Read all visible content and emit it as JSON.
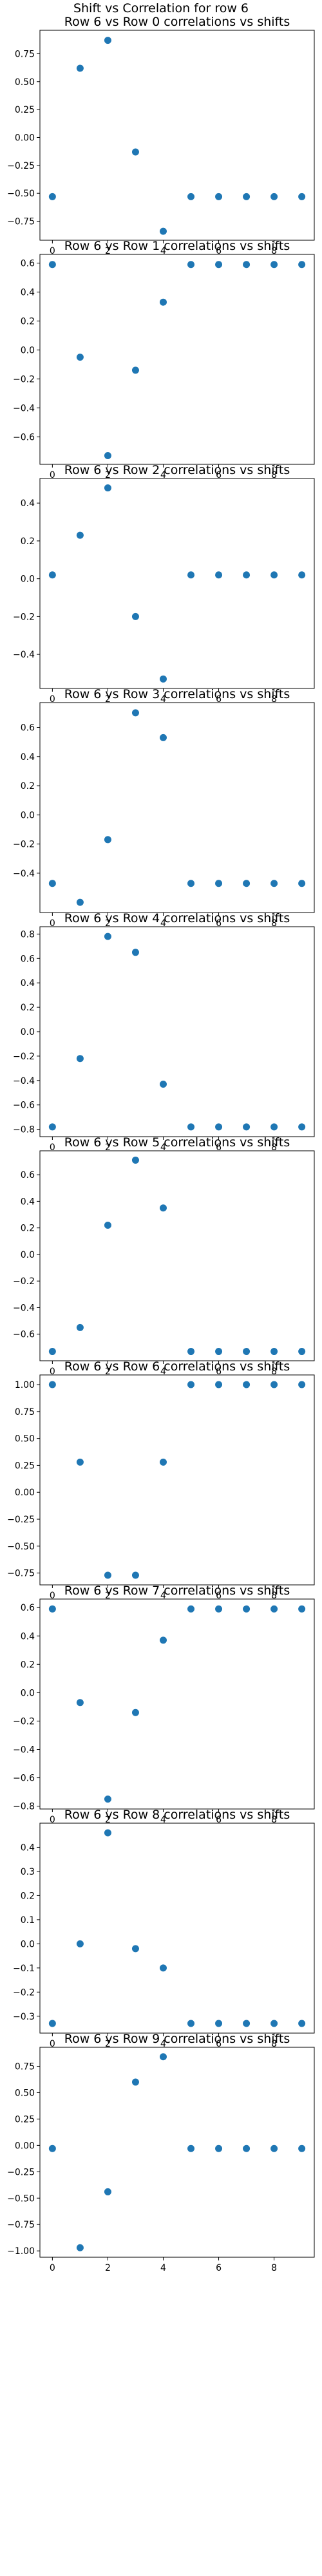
{
  "suptitle": "Shift vs Correlation for row 6",
  "colors": {
    "marker": "#1f77b4",
    "axis": "#000000"
  },
  "chart_data": [
    {
      "type": "scatter",
      "title": "Row 6 vs Row 0 correlations vs shifts",
      "x": [
        0,
        1,
        2,
        3,
        4,
        5,
        6,
        7,
        8,
        9
      ],
      "y": [
        -0.53,
        0.62,
        0.87,
        -0.13,
        -0.84,
        -0.53,
        -0.53,
        -0.53,
        -0.53,
        -0.53
      ],
      "xlim": [
        -0.45,
        9.45
      ],
      "ylim": [
        -0.92,
        0.96
      ],
      "xticks": [
        0,
        2,
        4,
        6,
        8
      ],
      "yticks": [
        -0.75,
        -0.5,
        -0.25,
        0.0,
        0.25,
        0.5,
        0.75
      ],
      "ytick_labels": [
        "−0.75",
        "−0.50",
        "−0.25",
        "0.00",
        "0.25",
        "0.50",
        "0.75"
      ]
    },
    {
      "type": "scatter",
      "title": "Row 6 vs Row 1 correlations vs shifts",
      "x": [
        0,
        1,
        2,
        3,
        4,
        5,
        6,
        7,
        8,
        9
      ],
      "y": [
        0.59,
        -0.05,
        -0.73,
        -0.14,
        0.33,
        0.59,
        0.59,
        0.59,
        0.59,
        0.59
      ],
      "xlim": [
        -0.45,
        9.45
      ],
      "ylim": [
        -0.79,
        0.66
      ],
      "xticks": [
        0,
        2,
        4,
        6,
        8
      ],
      "yticks": [
        -0.6,
        -0.4,
        -0.2,
        0.0,
        0.2,
        0.4,
        0.6
      ],
      "ytick_labels": [
        "−0.6",
        "−0.4",
        "−0.2",
        "0.0",
        "0.2",
        "0.4",
        "0.6"
      ]
    },
    {
      "type": "scatter",
      "title": "Row 6 vs Row 2 correlations vs shifts",
      "x": [
        0,
        1,
        2,
        3,
        4,
        5,
        6,
        7,
        8,
        9
      ],
      "y": [
        0.02,
        0.23,
        0.48,
        -0.2,
        -0.53,
        0.02,
        0.02,
        0.02,
        0.02,
        0.02
      ],
      "xlim": [
        -0.45,
        9.45
      ],
      "ylim": [
        -0.58,
        0.53
      ],
      "xticks": [
        0,
        2,
        4,
        6,
        8
      ],
      "yticks": [
        -0.4,
        -0.2,
        0.0,
        0.2,
        0.4
      ],
      "ytick_labels": [
        "−0.4",
        "−0.2",
        "0.0",
        "0.2",
        "0.4"
      ]
    },
    {
      "type": "scatter",
      "title": "Row 6 vs Row 3 correlations vs shifts",
      "x": [
        0,
        1,
        2,
        3,
        4,
        5,
        6,
        7,
        8,
        9
      ],
      "y": [
        -0.47,
        -0.6,
        -0.17,
        0.7,
        0.53,
        -0.47,
        -0.47,
        -0.47,
        -0.47,
        -0.47
      ],
      "xlim": [
        -0.45,
        9.45
      ],
      "ylim": [
        -0.67,
        0.77
      ],
      "xticks": [
        0,
        2,
        4,
        6,
        8
      ],
      "yticks": [
        -0.4,
        -0.2,
        0.0,
        0.2,
        0.4,
        0.6
      ],
      "ytick_labels": [
        "−0.4",
        "−0.2",
        "0.0",
        "0.2",
        "0.4",
        "0.6"
      ]
    },
    {
      "type": "scatter",
      "title": "Row 6 vs Row 4 correlations vs shifts",
      "x": [
        0,
        1,
        2,
        3,
        4,
        5,
        6,
        7,
        8,
        9
      ],
      "y": [
        -0.78,
        -0.22,
        0.78,
        0.65,
        -0.43,
        -0.78,
        -0.78,
        -0.78,
        -0.78,
        -0.78
      ],
      "xlim": [
        -0.45,
        9.45
      ],
      "ylim": [
        -0.86,
        0.86
      ],
      "xticks": [
        0,
        2,
        4,
        6,
        8
      ],
      "yticks": [
        -0.8,
        -0.6,
        -0.4,
        -0.2,
        0.0,
        0.2,
        0.4,
        0.6,
        0.8
      ],
      "ytick_labels": [
        "−0.8",
        "−0.6",
        "−0.4",
        "−0.2",
        "0.0",
        "0.2",
        "0.4",
        "0.6",
        "0.8"
      ]
    },
    {
      "type": "scatter",
      "title": "Row 6 vs Row 5 correlations vs shifts",
      "x": [
        0,
        1,
        2,
        3,
        4,
        5,
        6,
        7,
        8,
        9
      ],
      "y": [
        -0.73,
        -0.55,
        0.22,
        0.71,
        0.35,
        -0.73,
        -0.73,
        -0.73,
        -0.73,
        -0.73
      ],
      "xlim": [
        -0.45,
        9.45
      ],
      "ylim": [
        -0.8,
        0.78
      ],
      "xticks": [
        0,
        2,
        4,
        6,
        8
      ],
      "yticks": [
        -0.6,
        -0.4,
        -0.2,
        0.0,
        0.2,
        0.4,
        0.6
      ],
      "ytick_labels": [
        "−0.6",
        "−0.4",
        "−0.2",
        "0.0",
        "0.2",
        "0.4",
        "0.6"
      ]
    },
    {
      "type": "scatter",
      "title": "Row 6 vs Row 6 correlations vs shifts",
      "x": [
        0,
        1,
        2,
        3,
        4,
        5,
        6,
        7,
        8,
        9
      ],
      "y": [
        1.0,
        0.28,
        -0.77,
        -0.77,
        0.28,
        1.0,
        1.0,
        1.0,
        1.0,
        1.0
      ],
      "xlim": [
        -0.45,
        9.45
      ],
      "ylim": [
        -0.86,
        1.09
      ],
      "xticks": [
        0,
        2,
        4,
        6,
        8
      ],
      "yticks": [
        -0.75,
        -0.5,
        -0.25,
        0.0,
        0.25,
        0.5,
        0.75,
        1.0
      ],
      "ytick_labels": [
        "−0.75",
        "−0.50",
        "−0.25",
        "0.00",
        "0.25",
        "0.50",
        "0.75",
        "1.00"
      ]
    },
    {
      "type": "scatter",
      "title": "Row 6 vs Row 7 correlations vs shifts",
      "x": [
        0,
        1,
        2,
        3,
        4,
        5,
        6,
        7,
        8,
        9
      ],
      "y": [
        0.59,
        -0.07,
        -0.75,
        -0.14,
        0.37,
        0.59,
        0.59,
        0.59,
        0.59,
        0.59
      ],
      "xlim": [
        -0.45,
        9.45
      ],
      "ylim": [
        -0.82,
        0.66
      ],
      "xticks": [
        0,
        2,
        4,
        6,
        8
      ],
      "yticks": [
        -0.8,
        -0.6,
        -0.4,
        -0.2,
        0.0,
        0.2,
        0.4,
        0.6
      ],
      "ytick_labels": [
        "−0.8",
        "−0.6",
        "−0.4",
        "−0.2",
        "0.0",
        "0.2",
        "0.4",
        "0.6"
      ]
    },
    {
      "type": "scatter",
      "title": "Row 6 vs Row 8 correlations vs shifts",
      "x": [
        0,
        1,
        2,
        3,
        4,
        5,
        6,
        7,
        8,
        9
      ],
      "y": [
        -0.33,
        0.0,
        0.46,
        -0.02,
        -0.1,
        -0.33,
        -0.33,
        -0.33,
        -0.33,
        -0.33
      ],
      "xlim": [
        -0.45,
        9.45
      ],
      "ylim": [
        -0.37,
        0.5
      ],
      "xticks": [
        0,
        2,
        4,
        6,
        8
      ],
      "yticks": [
        -0.3,
        -0.2,
        -0.1,
        0.0,
        0.1,
        0.2,
        0.3,
        0.4
      ],
      "ytick_labels": [
        "−0.3",
        "−0.2",
        "−0.1",
        "0.0",
        "0.1",
        "0.2",
        "0.3",
        "0.4"
      ]
    },
    {
      "type": "scatter",
      "title": "Row 6 vs Row 9 correlations vs shifts",
      "x": [
        0,
        1,
        2,
        3,
        4,
        5,
        6,
        7,
        8,
        9
      ],
      "y": [
        -0.03,
        -0.97,
        -0.44,
        0.6,
        0.84,
        -0.03,
        -0.03,
        -0.03,
        -0.03,
        -0.03
      ],
      "xlim": [
        -0.45,
        9.45
      ],
      "ylim": [
        -1.06,
        0.93
      ],
      "xticks": [
        0,
        2,
        4,
        6,
        8
      ],
      "yticks": [
        -1.0,
        -0.75,
        -0.5,
        -0.25,
        0.0,
        0.25,
        0.5,
        0.75
      ],
      "ytick_labels": [
        "−1.00",
        "−0.75",
        "−0.50",
        "−0.25",
        "0.00",
        "0.25",
        "0.50",
        "0.75"
      ]
    }
  ]
}
